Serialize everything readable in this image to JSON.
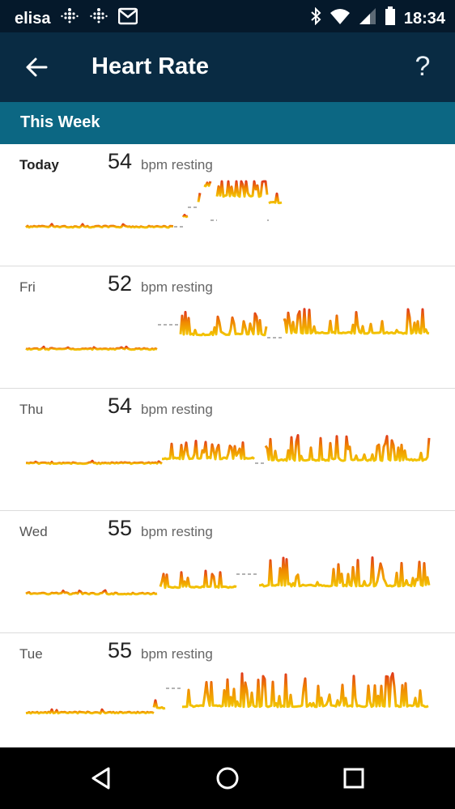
{
  "status_bar": {
    "carrier": "elisa",
    "time": "18:34",
    "icons": [
      "fitbit-dots-icon",
      "fitbit-dots-icon",
      "gmail-icon",
      "bluetooth-icon",
      "wifi-icon",
      "signal-icon",
      "battery-icon"
    ]
  },
  "header": {
    "title": "Heart Rate",
    "help_label": "?"
  },
  "section": {
    "label": "This Week"
  },
  "days": [
    {
      "day": "Today",
      "bpm": "54",
      "unit": "bpm resting"
    },
    {
      "day": "Fri",
      "bpm": "52",
      "unit": "bpm resting"
    },
    {
      "day": "Thu",
      "bpm": "54",
      "unit": "bpm resting"
    },
    {
      "day": "Wed",
      "bpm": "55",
      "unit": "bpm resting"
    },
    {
      "day": "Tue",
      "bpm": "55",
      "unit": "bpm resting"
    }
  ],
  "colors": {
    "status_bar": "#05192b",
    "app_bar": "#092b43",
    "section_band": "#0c6783",
    "trend_low": "#f2c400",
    "trend_mid": "#f08a00",
    "trend_high": "#e03a1a",
    "gap_dash": "#9a9a9a"
  }
}
